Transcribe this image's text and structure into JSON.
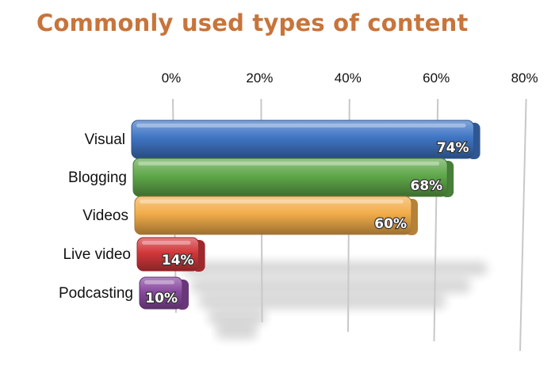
{
  "colors": {
    "title": "#c8743a",
    "series": [
      "#3f75c4",
      "#5fa84a",
      "#f2ad4a",
      "#d3373b",
      "#8a4aa0"
    ]
  },
  "chart_data": {
    "type": "bar",
    "orientation": "horizontal",
    "title": "Commonly used types of content",
    "xlabel": "",
    "ylabel": "",
    "xlim": [
      0,
      80
    ],
    "ticks": [
      0,
      20,
      40,
      60,
      80
    ],
    "tick_labels": [
      "0%",
      "20%",
      "40%",
      "60%",
      "80%"
    ],
    "categories": [
      "Visual",
      "Blogging",
      "Videos",
      "Live video",
      "Podcasting"
    ],
    "values": [
      74,
      68,
      60,
      14,
      10
    ],
    "data_labels": [
      "74%",
      "68%",
      "60%",
      "14%",
      "10%"
    ],
    "grid": true,
    "legend": "none"
  }
}
